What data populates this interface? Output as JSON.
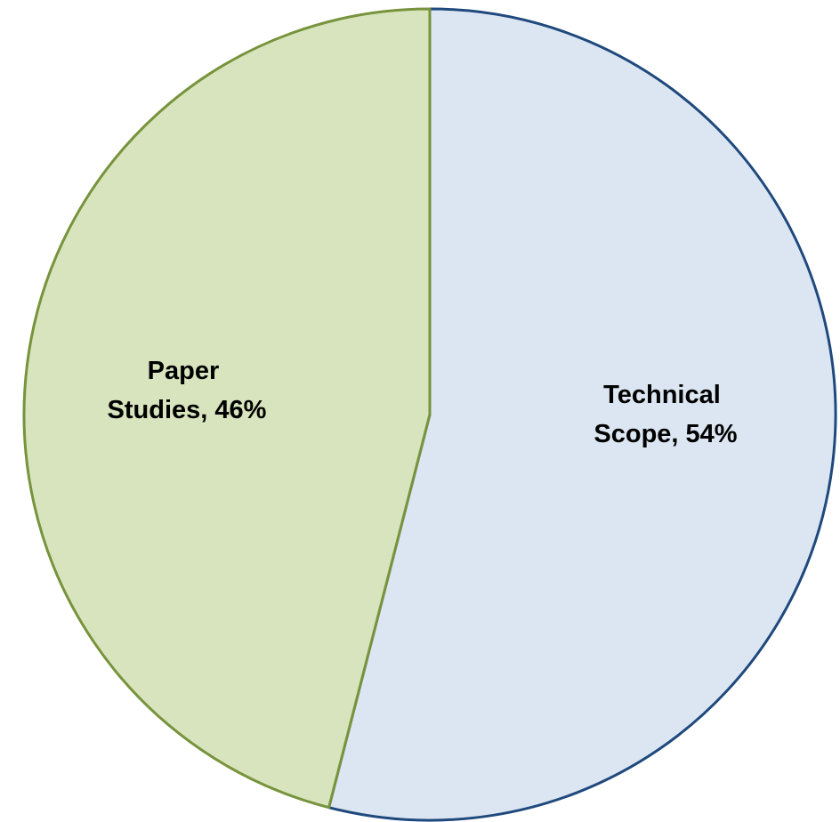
{
  "chart_data": {
    "type": "pie",
    "start_angle_deg": 0,
    "direction": "clockwise",
    "slices": [
      {
        "label_line1": "Technical",
        "label_line2": "Scope, 54%",
        "value": 54,
        "fill": "#dce6f2",
        "stroke": "#1f497d"
      },
      {
        "label_line1": "Paper",
        "label_line2": "Studies, 46%",
        "value": 46,
        "fill": "#d7e4bd",
        "stroke": "#77933c"
      }
    ]
  }
}
